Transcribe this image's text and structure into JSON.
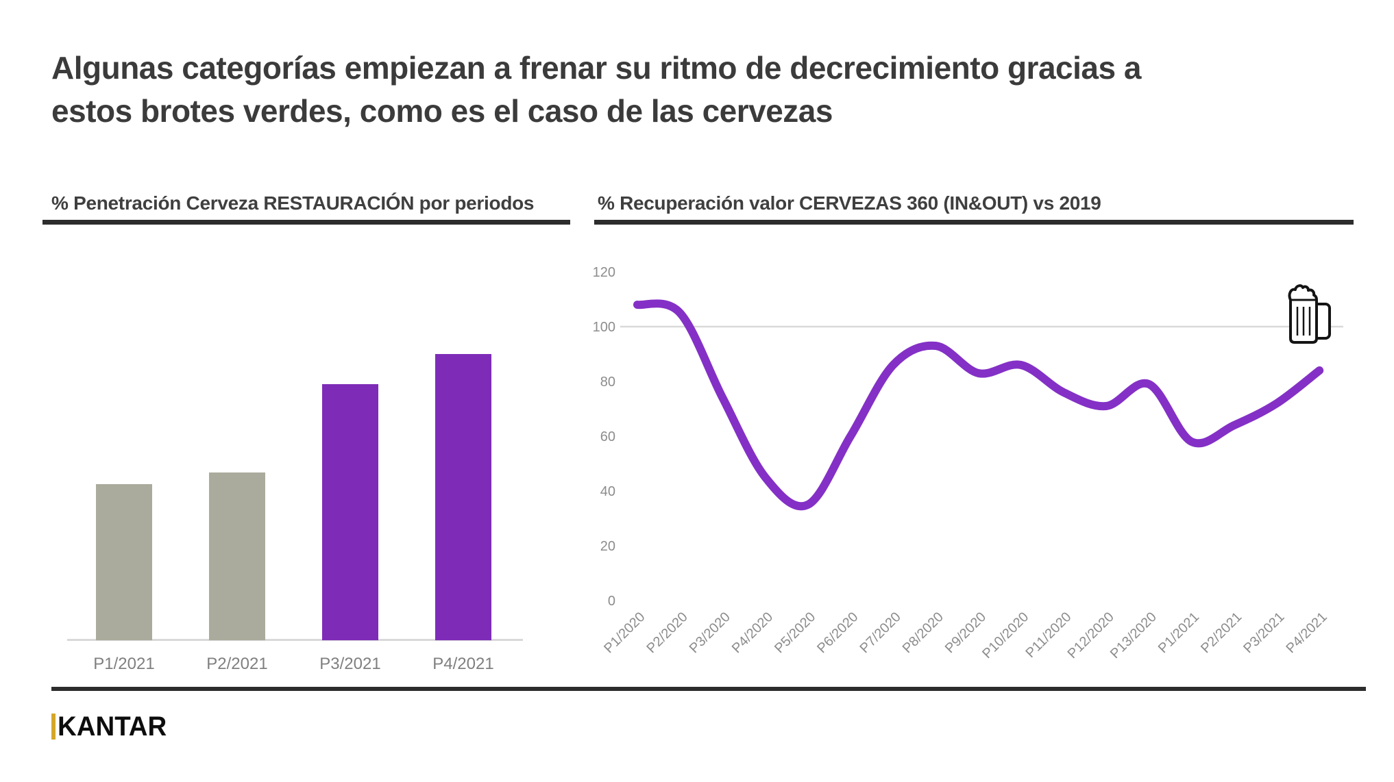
{
  "slide": {
    "title_line1": "Algunas categorías empiezan a frenar su ritmo de decrecimiento gracias a",
    "title_line2": "estos brotes verdes, como es el caso de las cervezas"
  },
  "footer": {
    "brand": "KANTAR"
  },
  "colors": {
    "title_text": "#3b3b3b",
    "rule_dark": "#2d2d2d",
    "bar_gray": "#ABAB9D",
    "bar_purple": "#7E2CB8",
    "line_purple": "#8430C6",
    "grid_gray": "#d9d9d9",
    "tick_gray": "#8c8c8c",
    "label_gray": "#7f7f7f",
    "brand_gold": "#d5a629",
    "brand_black": "#0d0d0d"
  },
  "icons": {
    "beer_mug": "beer-mug-icon"
  },
  "chart_data": [
    {
      "type": "bar",
      "title": "% Penetración Cerveza RESTAURACIÓN por periodos",
      "categories": [
        "P1/2021",
        "P2/2021",
        "P3/2021",
        "P4/2021"
      ],
      "values": [
        54.5,
        58.6,
        89.5,
        100
      ],
      "value_note": "relative heights, no value axis shown in chart",
      "bar_colors": [
        "#ABAB9D",
        "#ABAB9D",
        "#7E2CB8",
        "#7E2CB8"
      ],
      "xlabel": "",
      "ylabel": "",
      "grid": false,
      "legend": false
    },
    {
      "type": "line",
      "title": "% Recuperación valor CERVEZAS 360 (IN&OUT) vs 2019",
      "x": [
        "P1/2020",
        "P2/2020",
        "P3/2020",
        "P4/2020",
        "P5/2020",
        "P6/2020",
        "P7/2020",
        "P8/2020",
        "P9/2020",
        "P10/2020",
        "P11/2020",
        "P12/2020",
        "P13/2020",
        "P1/2021",
        "P2/2021",
        "P3/2021",
        "P4/2021"
      ],
      "values": [
        108,
        105,
        74,
        45,
        35,
        60,
        86,
        93,
        83,
        86,
        76,
        71,
        79,
        58,
        64,
        72,
        84
      ],
      "yticks": [
        0,
        20,
        40,
        60,
        80,
        100,
        120
      ],
      "ylim": [
        0,
        120
      ],
      "gridlines_at": [
        100
      ],
      "line_color": "#8430C6",
      "line_width": 12,
      "legend": false,
      "xlabel_rotation": -45
    }
  ]
}
